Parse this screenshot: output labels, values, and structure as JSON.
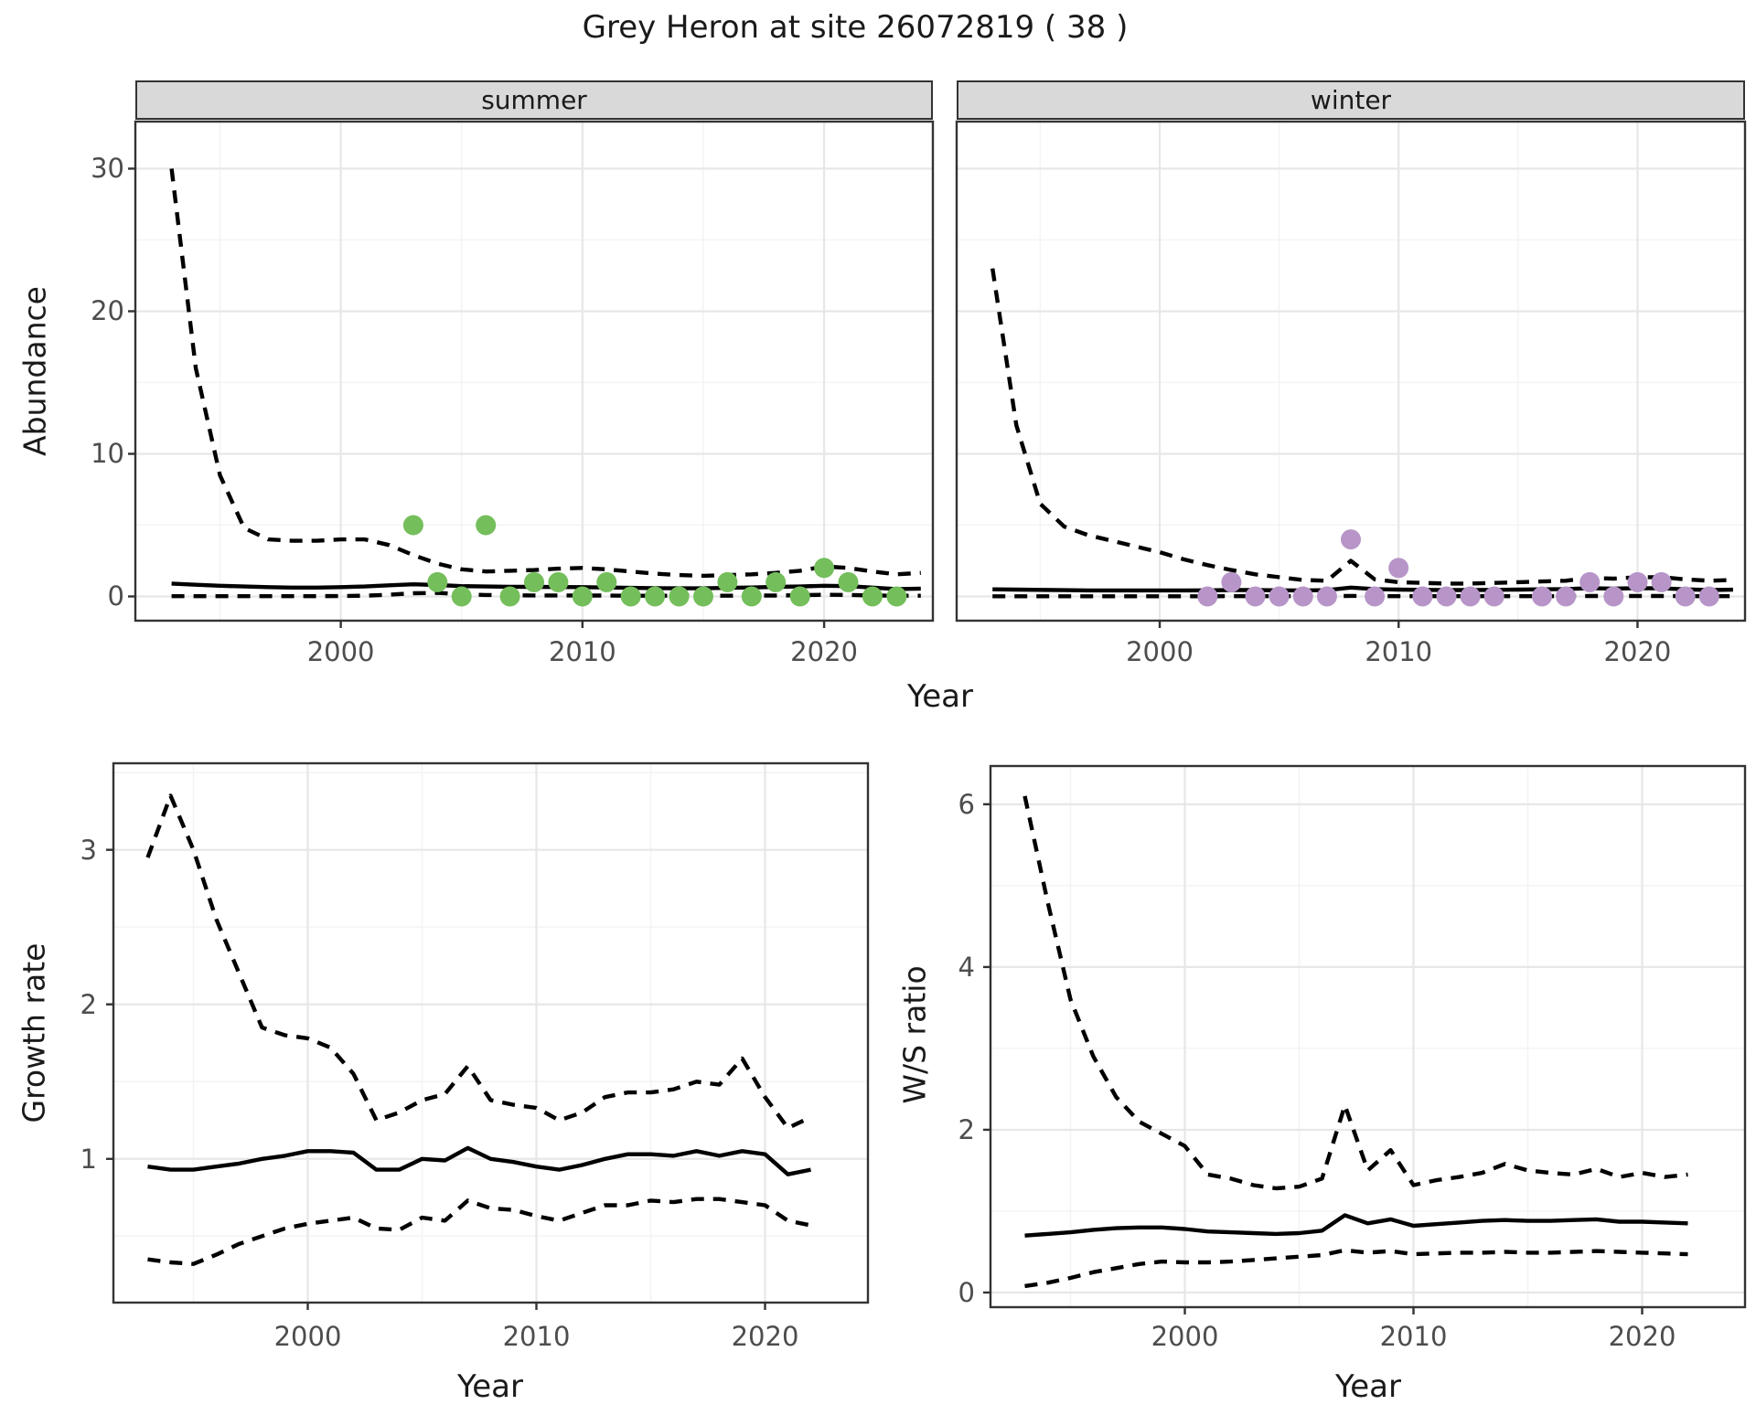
{
  "title": "Grey Heron at site 26072819 ( 38 )",
  "colors": {
    "summer_point": "#74BE5B",
    "winter_point": "#B795C8",
    "line": "#000000",
    "grid_major": "#e7e7e7",
    "grid_minor": "#f3f3f3",
    "strip_fill": "#d9d9d9",
    "panel_border": "#333333",
    "tick_text": "#4d4d4d",
    "axis_text": "#1a1a1a"
  },
  "axes": {
    "x_title": "Year",
    "top_y_title": "Abundance",
    "growth_y_title": "Growth rate",
    "ws_y_title": "W/S ratio"
  },
  "facets": {
    "summer_label": "summer",
    "winter_label": "winter"
  },
  "chart_data": [
    {
      "id": "abundance_summer",
      "type": "line",
      "title": "summer",
      "xlabel": "Year",
      "ylabel": "Abundance",
      "xlim": [
        1991.5,
        2024.5
      ],
      "ylim": [
        -1.7,
        33.3
      ],
      "x_ticks": [
        2000,
        2010,
        2020
      ],
      "x_minor": [
        1995,
        2005,
        2015
      ],
      "y_ticks": [
        0,
        10,
        20,
        30
      ],
      "y_minor": [
        5,
        15,
        25
      ],
      "x": [
        1993,
        1994,
        1995,
        1996,
        1997,
        1998,
        1999,
        2000,
        2001,
        2002,
        2003,
        2004,
        2005,
        2006,
        2007,
        2008,
        2009,
        2010,
        2011,
        2012,
        2013,
        2014,
        2015,
        2016,
        2017,
        2018,
        2019,
        2020,
        2021,
        2022,
        2023,
        2024
      ],
      "series": [
        {
          "name": "estimate",
          "style": "solid",
          "values": [
            0.9,
            0.82,
            0.75,
            0.7,
            0.65,
            0.62,
            0.62,
            0.65,
            0.7,
            0.78,
            0.85,
            0.8,
            0.72,
            0.7,
            0.68,
            0.67,
            0.66,
            0.65,
            0.63,
            0.6,
            0.58,
            0.57,
            0.57,
            0.6,
            0.63,
            0.67,
            0.7,
            0.75,
            0.72,
            0.62,
            0.52,
            0.55
          ]
        },
        {
          "name": "upper_ci",
          "style": "dashed",
          "values": [
            30,
            16,
            8.5,
            4.8,
            4.0,
            3.9,
            3.9,
            4.0,
            4.0,
            3.6,
            2.9,
            2.3,
            1.9,
            1.75,
            1.8,
            1.85,
            1.95,
            2.0,
            1.9,
            1.75,
            1.6,
            1.5,
            1.45,
            1.5,
            1.55,
            1.65,
            1.8,
            2.1,
            2.0,
            1.75,
            1.55,
            1.65
          ]
        },
        {
          "name": "lower_ci",
          "style": "dashed",
          "values": [
            0.02,
            0.02,
            0.02,
            0.02,
            0.02,
            0.02,
            0.02,
            0.03,
            0.05,
            0.12,
            0.22,
            0.25,
            0.15,
            0.1,
            0.08,
            0.07,
            0.07,
            0.06,
            0.06,
            0.05,
            0.05,
            0.05,
            0.05,
            0.05,
            0.06,
            0.06,
            0.08,
            0.12,
            0.1,
            0.07,
            0.05,
            0.05
          ]
        }
      ],
      "points": {
        "name": "observed-counts-summer",
        "color": "#74BE5B",
        "x": [
          2003,
          2004,
          2005,
          2006,
          2007,
          2008,
          2009,
          2010,
          2011,
          2012,
          2013,
          2014,
          2015,
          2016,
          2017,
          2018,
          2019,
          2020,
          2021,
          2022,
          2023
        ],
        "y": [
          5,
          1,
          0,
          5,
          0,
          1,
          1,
          0,
          1,
          0,
          0,
          0,
          0,
          1,
          0,
          1,
          0,
          2,
          1,
          0,
          0
        ]
      }
    },
    {
      "id": "abundance_winter",
      "type": "line",
      "title": "winter",
      "xlabel": "Year",
      "ylabel": "Abundance",
      "xlim": [
        1991.5,
        2024.5
      ],
      "ylim": [
        -1.7,
        33.3
      ],
      "x_ticks": [
        2000,
        2010,
        2020
      ],
      "x_minor": [
        1995,
        2005,
        2015
      ],
      "y_ticks": [
        0,
        10,
        20,
        30
      ],
      "y_minor": [
        5,
        15,
        25
      ],
      "x": [
        1993,
        1994,
        1995,
        1996,
        1997,
        1998,
        1999,
        2000,
        2001,
        2002,
        2003,
        2004,
        2005,
        2006,
        2007,
        2008,
        2009,
        2010,
        2011,
        2012,
        2013,
        2014,
        2015,
        2016,
        2017,
        2018,
        2019,
        2020,
        2021,
        2022,
        2023,
        2024
      ],
      "series": [
        {
          "name": "estimate",
          "style": "solid",
          "values": [
            0.5,
            0.48,
            0.46,
            0.44,
            0.42,
            0.42,
            0.42,
            0.42,
            0.42,
            0.43,
            0.45,
            0.45,
            0.43,
            0.42,
            0.44,
            0.62,
            0.52,
            0.48,
            0.46,
            0.45,
            0.45,
            0.46,
            0.48,
            0.5,
            0.52,
            0.58,
            0.55,
            0.58,
            0.57,
            0.5,
            0.45,
            0.47
          ]
        },
        {
          "name": "upper_ci",
          "style": "dashed",
          "values": [
            23,
            12,
            6.5,
            4.9,
            4.3,
            3.9,
            3.5,
            3.1,
            2.6,
            2.2,
            1.85,
            1.55,
            1.35,
            1.15,
            1.1,
            2.5,
            1.2,
            1.0,
            0.95,
            0.9,
            0.9,
            0.95,
            1.0,
            1.05,
            1.1,
            1.3,
            1.25,
            1.35,
            1.35,
            1.2,
            1.1,
            1.15
          ]
        },
        {
          "name": "lower_ci",
          "style": "dashed",
          "values": [
            0.01,
            0.01,
            0.01,
            0.01,
            0.01,
            0.01,
            0.01,
            0.01,
            0.01,
            0.01,
            0.02,
            0.02,
            0.02,
            0.02,
            0.02,
            0.04,
            0.02,
            0.02,
            0.02,
            0.02,
            0.02,
            0.02,
            0.02,
            0.02,
            0.02,
            0.03,
            0.03,
            0.03,
            0.03,
            0.02,
            0.02,
            0.02
          ]
        }
      ],
      "points": {
        "name": "observed-counts-winter",
        "color": "#B795C8",
        "x": [
          2002,
          2003,
          2004,
          2005,
          2006,
          2007,
          2008,
          2009,
          2010,
          2011,
          2012,
          2013,
          2014,
          2016,
          2017,
          2018,
          2019,
          2020,
          2021,
          2022,
          2023
        ],
        "y": [
          0,
          1,
          0,
          0,
          0,
          0,
          4,
          0,
          2,
          0,
          0,
          0,
          0,
          0,
          0,
          1,
          0,
          1,
          1,
          0,
          0
        ]
      }
    },
    {
      "id": "growth_rate",
      "type": "line",
      "title": "Growth rate",
      "xlabel": "Year",
      "ylabel": "Growth rate",
      "xlim": [
        1991.5,
        2024.5
      ],
      "ylim": [
        0.07,
        3.56
      ],
      "x_ticks": [
        2000,
        2010,
        2020
      ],
      "x_minor": [
        1995,
        2005,
        2015
      ],
      "y_ticks": [
        1,
        2,
        3
      ],
      "y_minor": [
        0.5,
        1.5,
        2.5,
        3.5
      ],
      "x": [
        1993,
        1994,
        1995,
        1996,
        1997,
        1998,
        1999,
        2000,
        2001,
        2002,
        2003,
        2004,
        2005,
        2006,
        2007,
        2008,
        2009,
        2010,
        2011,
        2012,
        2013,
        2014,
        2015,
        2016,
        2017,
        2018,
        2019,
        2020,
        2021,
        2022
      ],
      "series": [
        {
          "name": "estimate",
          "style": "solid",
          "values": [
            0.95,
            0.93,
            0.93,
            0.95,
            0.97,
            1.0,
            1.02,
            1.05,
            1.05,
            1.04,
            0.93,
            0.93,
            1.0,
            0.99,
            1.07,
            1.0,
            0.98,
            0.95,
            0.93,
            0.96,
            1.0,
            1.03,
            1.03,
            1.02,
            1.05,
            1.02,
            1.05,
            1.03,
            0.9,
            0.93
          ]
        },
        {
          "name": "upper_ci",
          "style": "dashed",
          "values": [
            2.95,
            3.35,
            3.0,
            2.55,
            2.2,
            1.85,
            1.8,
            1.78,
            1.72,
            1.55,
            1.25,
            1.3,
            1.38,
            1.42,
            1.6,
            1.38,
            1.35,
            1.33,
            1.25,
            1.3,
            1.4,
            1.43,
            1.43,
            1.45,
            1.5,
            1.48,
            1.65,
            1.4,
            1.2,
            1.27
          ]
        },
        {
          "name": "lower_ci",
          "style": "dashed",
          "values": [
            0.35,
            0.33,
            0.32,
            0.38,
            0.45,
            0.5,
            0.55,
            0.58,
            0.6,
            0.62,
            0.55,
            0.54,
            0.62,
            0.6,
            0.73,
            0.68,
            0.67,
            0.63,
            0.6,
            0.65,
            0.7,
            0.7,
            0.73,
            0.72,
            0.74,
            0.74,
            0.72,
            0.7,
            0.6,
            0.57
          ]
        }
      ]
    },
    {
      "id": "ws_ratio",
      "type": "line",
      "title": "W/S ratio",
      "xlabel": "Year",
      "ylabel": "W/S ratio",
      "xlim": [
        1991.5,
        2024.5
      ],
      "ylim": [
        -0.18,
        6.47
      ],
      "x_ticks": [
        2000,
        2010,
        2020
      ],
      "x_minor": [
        1995,
        2005,
        2015
      ],
      "y_ticks": [
        0,
        2,
        4,
        6
      ],
      "y_minor": [
        1,
        3,
        5
      ],
      "x": [
        1993,
        1994,
        1995,
        1996,
        1997,
        1998,
        1999,
        2000,
        2001,
        2002,
        2003,
        2004,
        2005,
        2006,
        2007,
        2008,
        2009,
        2010,
        2011,
        2012,
        2013,
        2014,
        2015,
        2016,
        2017,
        2018,
        2019,
        2020,
        2021,
        2022
      ],
      "series": [
        {
          "name": "estimate",
          "style": "solid",
          "values": [
            0.7,
            0.72,
            0.74,
            0.77,
            0.79,
            0.8,
            0.8,
            0.78,
            0.75,
            0.74,
            0.73,
            0.72,
            0.73,
            0.76,
            0.95,
            0.85,
            0.9,
            0.82,
            0.84,
            0.86,
            0.88,
            0.89,
            0.88,
            0.88,
            0.89,
            0.9,
            0.87,
            0.87,
            0.86,
            0.85
          ]
        },
        {
          "name": "upper_ci",
          "style": "dashed",
          "values": [
            6.1,
            4.8,
            3.6,
            2.9,
            2.4,
            2.1,
            1.95,
            1.8,
            1.45,
            1.4,
            1.32,
            1.28,
            1.3,
            1.4,
            2.3,
            1.5,
            1.75,
            1.32,
            1.38,
            1.42,
            1.47,
            1.58,
            1.5,
            1.47,
            1.45,
            1.52,
            1.42,
            1.47,
            1.42,
            1.45
          ]
        },
        {
          "name": "lower_ci",
          "style": "dashed",
          "values": [
            0.08,
            0.12,
            0.18,
            0.25,
            0.3,
            0.35,
            0.38,
            0.37,
            0.37,
            0.38,
            0.4,
            0.42,
            0.44,
            0.46,
            0.52,
            0.49,
            0.51,
            0.47,
            0.48,
            0.49,
            0.49,
            0.5,
            0.49,
            0.49,
            0.5,
            0.51,
            0.5,
            0.49,
            0.48,
            0.47
          ]
        }
      ]
    }
  ]
}
